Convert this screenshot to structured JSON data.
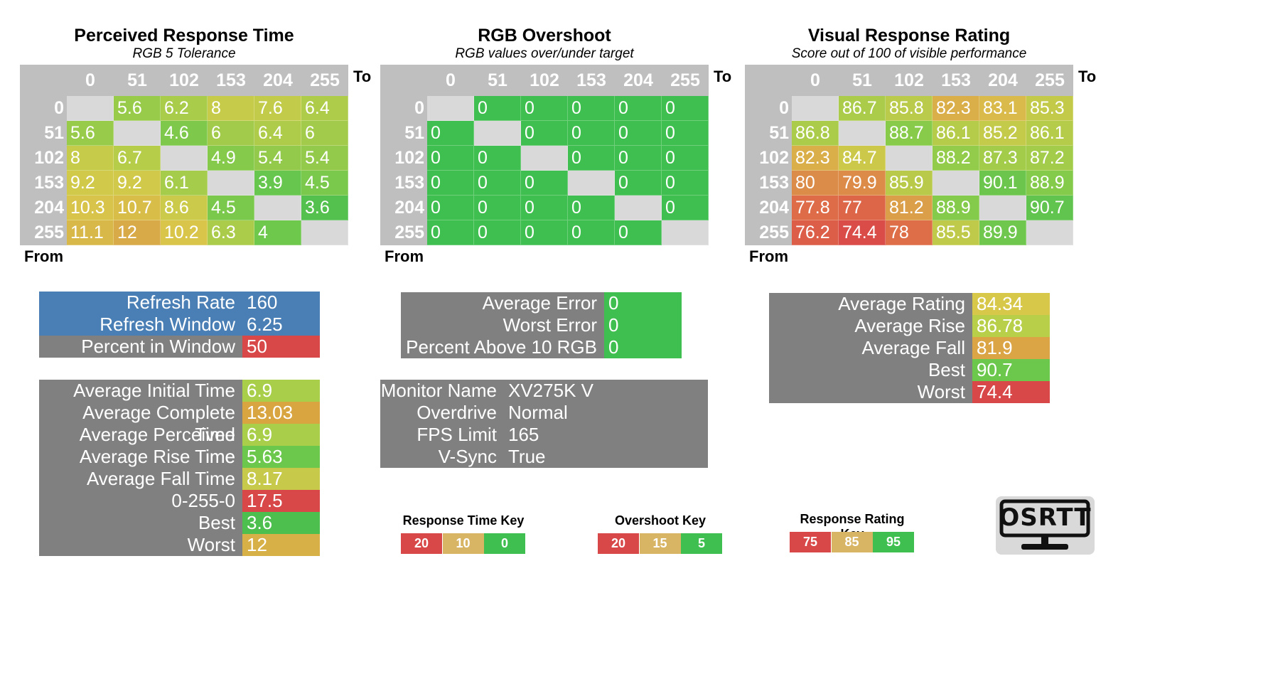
{
  "heatmaps": [
    {
      "title": "Perceived Response Time",
      "subtitle": "RGB 5 Tolerance",
      "to_label": "To",
      "from_label": "From",
      "columns": [
        "0",
        "51",
        "102",
        "153",
        "204",
        "255"
      ],
      "rows": [
        "0",
        "51",
        "102",
        "153",
        "204",
        "255"
      ],
      "values": [
        [
          null,
          "5.6",
          "6.2",
          "8",
          "7.6",
          "6.4"
        ],
        [
          "5.6",
          null,
          "4.6",
          "6",
          "6.4",
          "6"
        ],
        [
          "8",
          "6.7",
          null,
          "4.9",
          "5.4",
          "5.4"
        ],
        [
          "9.2",
          "9.2",
          "6.1",
          null,
          "3.9",
          "4.5"
        ],
        [
          "10.3",
          "10.7",
          "8.6",
          "4.5",
          null,
          "3.6"
        ],
        [
          "11.1",
          "12",
          "10.2",
          "6.3",
          "4",
          null
        ]
      ],
      "scale": "time"
    },
    {
      "title": "RGB Overshoot",
      "subtitle": "RGB values over/under target",
      "to_label": "To",
      "from_label": "From",
      "columns": [
        "0",
        "51",
        "102",
        "153",
        "204",
        "255"
      ],
      "rows": [
        "0",
        "51",
        "102",
        "153",
        "204",
        "255"
      ],
      "values": [
        [
          null,
          "0",
          "0",
          "0",
          "0",
          "0"
        ],
        [
          "0",
          null,
          "0",
          "0",
          "0",
          "0"
        ],
        [
          "0",
          "0",
          null,
          "0",
          "0",
          "0"
        ],
        [
          "0",
          "0",
          "0",
          null,
          "0",
          "0"
        ],
        [
          "0",
          "0",
          "0",
          "0",
          null,
          "0"
        ],
        [
          "0",
          "0",
          "0",
          "0",
          "0",
          null
        ]
      ],
      "scale": "overshoot"
    },
    {
      "title": "Visual Response Rating",
      "subtitle": "Score out of 100 of visible performance",
      "to_label": "To",
      "from_label": "From",
      "columns": [
        "0",
        "51",
        "102",
        "153",
        "204",
        "255"
      ],
      "rows": [
        "0",
        "51",
        "102",
        "153",
        "204",
        "255"
      ],
      "values": [
        [
          null,
          "86.7",
          "85.8",
          "82.3",
          "83.1",
          "85.3"
        ],
        [
          "86.8",
          null,
          "88.7",
          "86.1",
          "85.2",
          "86.1"
        ],
        [
          "82.3",
          "84.7",
          null,
          "88.2",
          "87.3",
          "87.2"
        ],
        [
          "80",
          "79.9",
          "85.9",
          null,
          "90.1",
          "88.9"
        ],
        [
          "77.8",
          "77",
          "81.2",
          "88.9",
          null,
          "90.7"
        ],
        [
          "76.2",
          "74.4",
          "78",
          "85.5",
          "89.9",
          null
        ]
      ],
      "scale": "rating"
    }
  ],
  "refresh_panel": [
    {
      "label": "Refresh Rate",
      "value": "160",
      "label_color": "#4a7fb5",
      "value_color": "#4a7fb5"
    },
    {
      "label": "Refresh Window",
      "value": "6.25",
      "label_color": "#4a7fb5",
      "value_color": "#4a7fb5"
    },
    {
      "label": "Percent in Window",
      "value": "50",
      "label_color": "#808080",
      "value_color": "#d94848"
    }
  ],
  "time_panel": [
    {
      "label": "Average Initial Time",
      "value": "6.9",
      "value_color": "#a9cf4a"
    },
    {
      "label": "Average Complete Time",
      "value": "13.03",
      "value_color": "#d9a540"
    },
    {
      "label": "Average Perceived Time",
      "value": "6.9",
      "value_color": "#a9cf4a"
    },
    {
      "label": "Average Rise Time",
      "value": "5.63",
      "value_color": "#6cc84c"
    },
    {
      "label": "Average Fall Time",
      "value": "8.17",
      "value_color": "#c6c94a"
    },
    {
      "label": "0-255-0",
      "value": "17.5",
      "value_color": "#d94848"
    },
    {
      "label": "Best",
      "value": "3.6",
      "value_color": "#4dbf4f"
    },
    {
      "label": "Worst",
      "value": "12",
      "value_color": "#d8b048"
    }
  ],
  "error_panel": [
    {
      "label": "Average Error",
      "value": "0"
    },
    {
      "label": "Worst Error",
      "value": "0"
    },
    {
      "label": "Percent Above 10 RGB",
      "value": "0"
    }
  ],
  "monitor_panel": [
    {
      "label": "Monitor Name",
      "value": "XV275K V"
    },
    {
      "label": "Overdrive",
      "value": "Normal"
    },
    {
      "label": "FPS Limit",
      "value": "165"
    },
    {
      "label": "V-Sync",
      "value": "True"
    }
  ],
  "rating_panel": [
    {
      "label": "Average Rating",
      "value": "84.34",
      "value_color": "#d8c84a"
    },
    {
      "label": "Average Rise",
      "value": "86.78",
      "value_color": "#b8cf4a"
    },
    {
      "label": "Average Fall",
      "value": "81.9",
      "value_color": "#dba444"
    },
    {
      "label": "Best",
      "value": "90.7",
      "value_color": "#6cc84c"
    },
    {
      "label": "Worst",
      "value": "74.4",
      "value_color": "#d94848"
    }
  ],
  "keys": [
    {
      "title": "Response Time Key",
      "items": [
        {
          "v": "20",
          "c": "#d94848"
        },
        {
          "v": "10",
          "c": "#d8b565"
        },
        {
          "v": "0",
          "c": "#3fbf4f"
        }
      ]
    },
    {
      "title": "Overshoot Key",
      "items": [
        {
          "v": "20",
          "c": "#d94848"
        },
        {
          "v": "15",
          "c": "#d8b565"
        },
        {
          "v": "5",
          "c": "#3fbf4f"
        }
      ]
    },
    {
      "title": "Response Rating Key",
      "items": [
        {
          "v": "75",
          "c": "#d94848"
        },
        {
          "v": "85",
          "c": "#d8b565"
        },
        {
          "v": "95",
          "c": "#3fbf4f"
        }
      ]
    }
  ],
  "logo_text": "OSRTT",
  "colors": {
    "header_gray": "#bfbfbf",
    "panel_gray": "#808080",
    "diag_gray": "#d9d9d9",
    "overshoot_green": "#3fbf4f",
    "error_green": "#3fbf4f"
  },
  "chart_data": [
    {
      "type": "heatmap",
      "title": "Perceived Response Time",
      "subtitle": "RGB 5 Tolerance",
      "xlabel": "To",
      "ylabel": "From",
      "x": [
        0,
        51,
        102,
        153,
        204,
        255
      ],
      "y": [
        0,
        51,
        102,
        153,
        204,
        255
      ],
      "values": [
        [
          null,
          5.6,
          6.2,
          8,
          7.6,
          6.4
        ],
        [
          5.6,
          null,
          4.6,
          6,
          6.4,
          6
        ],
        [
          8,
          6.7,
          null,
          4.9,
          5.4,
          5.4
        ],
        [
          9.2,
          9.2,
          6.1,
          null,
          3.9,
          4.5
        ],
        [
          10.3,
          10.7,
          8.6,
          4.5,
          null,
          3.6
        ],
        [
          11.1,
          12,
          10.2,
          6.3,
          4,
          null
        ]
      ]
    },
    {
      "type": "heatmap",
      "title": "RGB Overshoot",
      "subtitle": "RGB values over/under target",
      "xlabel": "To",
      "ylabel": "From",
      "x": [
        0,
        51,
        102,
        153,
        204,
        255
      ],
      "y": [
        0,
        51,
        102,
        153,
        204,
        255
      ],
      "values": [
        [
          null,
          0,
          0,
          0,
          0,
          0
        ],
        [
          0,
          null,
          0,
          0,
          0,
          0
        ],
        [
          0,
          0,
          null,
          0,
          0,
          0
        ],
        [
          0,
          0,
          0,
          null,
          0,
          0
        ],
        [
          0,
          0,
          0,
          0,
          null,
          0
        ],
        [
          0,
          0,
          0,
          0,
          0,
          null
        ]
      ]
    },
    {
      "type": "heatmap",
      "title": "Visual Response Rating",
      "subtitle": "Score out of 100 of visible performance",
      "xlabel": "To",
      "ylabel": "From",
      "x": [
        0,
        51,
        102,
        153,
        204,
        255
      ],
      "y": [
        0,
        51,
        102,
        153,
        204,
        255
      ],
      "values": [
        [
          null,
          86.7,
          85.8,
          82.3,
          83.1,
          85.3
        ],
        [
          86.8,
          null,
          88.7,
          86.1,
          85.2,
          86.1
        ],
        [
          82.3,
          84.7,
          null,
          88.2,
          87.3,
          87.2
        ],
        [
          80,
          79.9,
          85.9,
          null,
          90.1,
          88.9
        ],
        [
          77.8,
          77,
          81.2,
          88.9,
          null,
          90.7
        ],
        [
          76.2,
          74.4,
          78,
          85.5,
          89.9,
          null
        ]
      ]
    }
  ]
}
